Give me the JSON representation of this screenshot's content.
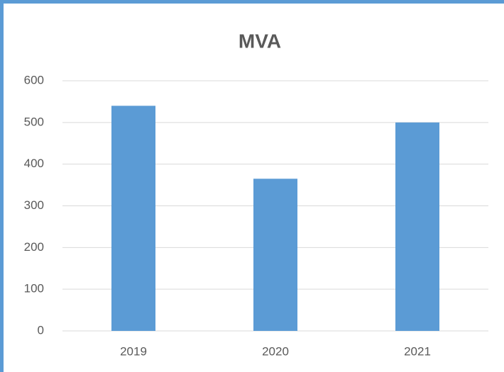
{
  "chart_data": {
    "type": "bar",
    "title": "MVA",
    "categories": [
      "2019",
      "2020",
      "2021"
    ],
    "values": [
      540,
      365,
      500
    ],
    "color": "#5b9bd5",
    "ylim": [
      0,
      600
    ],
    "yticks": [
      0,
      100,
      200,
      300,
      400,
      500,
      600
    ],
    "grid": true
  }
}
